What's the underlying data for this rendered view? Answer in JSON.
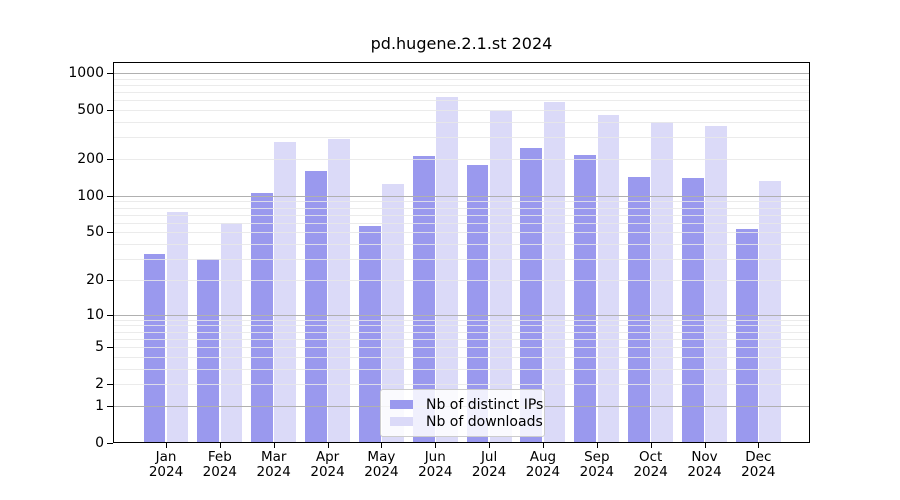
{
  "figure": {
    "background": "#ffffff"
  },
  "legend": {
    "items": [
      {
        "label": "Nb of distinct IPs",
        "color": "#9a99ee"
      },
      {
        "label": "Nb of downloads",
        "color": "#dbdaf8"
      }
    ]
  },
  "chart_data": {
    "type": "bar",
    "title": "pd.hugene.2.1.st 2024",
    "y_scale": "log10(1+x)",
    "categories": [
      "Jan",
      "Feb",
      "Mar",
      "Apr",
      "May",
      "Jun",
      "Jul",
      "Aug",
      "Sep",
      "Oct",
      "Nov",
      "Dec"
    ],
    "x_sub_label": "2024",
    "series": [
      {
        "name": "Nb of distinct IPs",
        "color": "#9a99ee",
        "values": [
          33,
          30,
          106,
          161,
          57,
          210,
          180,
          244,
          215,
          143,
          139,
          53
        ]
      },
      {
        "name": "Nb of downloads",
        "color": "#dbdaf8",
        "values": [
          74,
          60,
          273,
          289,
          126,
          640,
          490,
          580,
          452,
          397,
          368,
          133
        ]
      }
    ],
    "y_ticks": [
      1000,
      500,
      200,
      100,
      50,
      20,
      10,
      5,
      2,
      1,
      0
    ],
    "y_gridlines_major": [
      1,
      10,
      100,
      1000
    ],
    "y_gridlines_minor": [
      2,
      3,
      4,
      5,
      6,
      7,
      8,
      9,
      20,
      30,
      40,
      50,
      60,
      70,
      80,
      90,
      200,
      300,
      400,
      500,
      600,
      700,
      800,
      900
    ],
    "ylim": [
      0,
      1240
    ],
    "grid": true,
    "legend_position": "lower center",
    "colors": {
      "axis": "#000000",
      "grid_major": "#b0b0b0",
      "grid_minor": "#e7e7e7",
      "text": "#000000",
      "legend_border": "#cccccc"
    }
  }
}
